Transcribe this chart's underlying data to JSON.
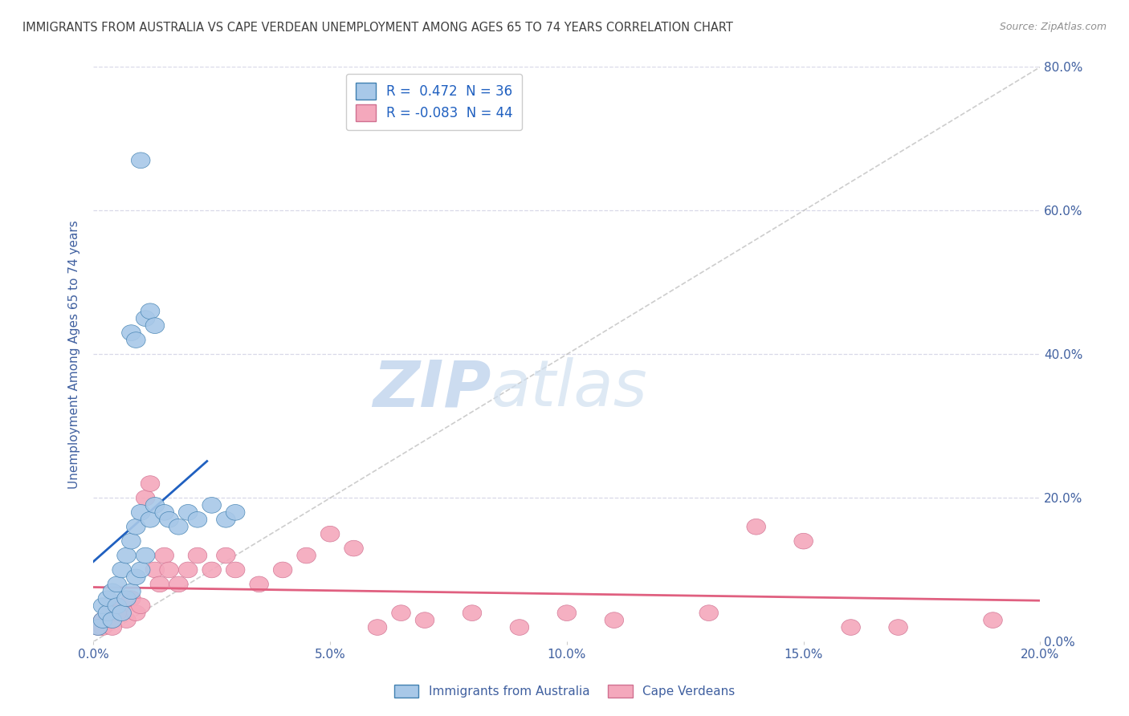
{
  "title": "IMMIGRANTS FROM AUSTRALIA VS CAPE VERDEAN UNEMPLOYMENT AMONG AGES 65 TO 74 YEARS CORRELATION CHART",
  "source": "Source: ZipAtlas.com",
  "ylabel": "Unemployment Among Ages 65 to 74 years",
  "xlim": [
    0.0,
    0.2
  ],
  "ylim": [
    0.0,
    0.8
  ],
  "xticks": [
    0.0,
    0.05,
    0.1,
    0.15,
    0.2
  ],
  "yticks": [
    0.0,
    0.2,
    0.4,
    0.6,
    0.8
  ],
  "legend_R_australia": "0.472",
  "legend_N_australia": "36",
  "legend_R_capeverde": "-0.083",
  "legend_N_capeverde": "44",
  "australia_color": "#a8c8e8",
  "capeverde_color": "#f4a8bc",
  "australia_line_color": "#2060c0",
  "capeverde_line_color": "#e06080",
  "diagonal_color": "#b8b8b8",
  "background_color": "#ffffff",
  "grid_color": "#d8d8e8",
  "title_color": "#404040",
  "axis_label_color": "#4060a0",
  "legend_text_color": "#2060c0",
  "watermark_color": "#ccdcf0",
  "australia_points_x": [
    0.001,
    0.002,
    0.002,
    0.003,
    0.003,
    0.004,
    0.004,
    0.005,
    0.005,
    0.006,
    0.006,
    0.007,
    0.007,
    0.008,
    0.008,
    0.009,
    0.009,
    0.01,
    0.01,
    0.011,
    0.012,
    0.013,
    0.015,
    0.016,
    0.018,
    0.02,
    0.022,
    0.025,
    0.028,
    0.03,
    0.01,
    0.011,
    0.012,
    0.013,
    0.008,
    0.009
  ],
  "australia_points_y": [
    0.02,
    0.03,
    0.05,
    0.04,
    0.06,
    0.03,
    0.07,
    0.05,
    0.08,
    0.04,
    0.1,
    0.06,
    0.12,
    0.07,
    0.14,
    0.09,
    0.16,
    0.1,
    0.18,
    0.12,
    0.17,
    0.19,
    0.18,
    0.17,
    0.16,
    0.18,
    0.17,
    0.19,
    0.17,
    0.18,
    0.67,
    0.45,
    0.46,
    0.44,
    0.43,
    0.42
  ],
  "capeverde_points_x": [
    0.001,
    0.002,
    0.003,
    0.004,
    0.005,
    0.006,
    0.007,
    0.008,
    0.009,
    0.01,
    0.011,
    0.012,
    0.013,
    0.014,
    0.015,
    0.016,
    0.018,
    0.02,
    0.022,
    0.025,
    0.028,
    0.03,
    0.035,
    0.04,
    0.045,
    0.05,
    0.055,
    0.06,
    0.065,
    0.07,
    0.08,
    0.09,
    0.1,
    0.11,
    0.13,
    0.14,
    0.15,
    0.16,
    0.17,
    0.19,
    0.002,
    0.003,
    0.004,
    0.005
  ],
  "capeverde_points_y": [
    0.02,
    0.03,
    0.04,
    0.03,
    0.05,
    0.04,
    0.03,
    0.06,
    0.04,
    0.05,
    0.2,
    0.22,
    0.1,
    0.08,
    0.12,
    0.1,
    0.08,
    0.1,
    0.12,
    0.1,
    0.12,
    0.1,
    0.08,
    0.1,
    0.12,
    0.15,
    0.13,
    0.02,
    0.04,
    0.03,
    0.04,
    0.02,
    0.04,
    0.03,
    0.04,
    0.16,
    0.14,
    0.02,
    0.02,
    0.03,
    0.02,
    0.03,
    0.02,
    0.04
  ]
}
